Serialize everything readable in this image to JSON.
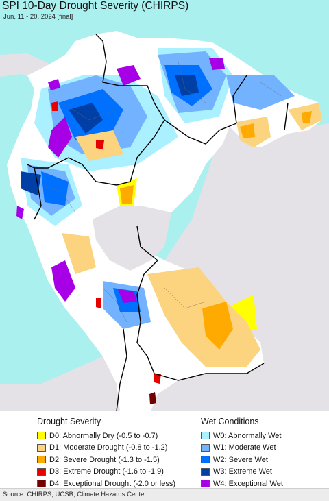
{
  "header": {
    "title": "SPI 10-Day Drought Severity (CHIRPS)",
    "subtitle": "Jun. 11 - 20, 2024 [final]"
  },
  "legend": {
    "drought": {
      "title": "Drought Severity",
      "items": [
        {
          "label": "D0: Abnormally Dry (-0.5 to -0.7)",
          "color": "#ffff00"
        },
        {
          "label": "D1: Moderate Drought (-0.8 to -1.2)",
          "color": "#fcd37f"
        },
        {
          "label": "D2: Severe Drought (-1.3 to -1.5)",
          "color": "#ffaa00"
        },
        {
          "label": "D3: Extreme Drought (-1.6 to -1.9)",
          "color": "#e60000"
        },
        {
          "label": "D4: Exceptional Drought (-2.0 or less)",
          "color": "#730000"
        }
      ]
    },
    "wet": {
      "title": "Wet Conditions",
      "items": [
        {
          "label": "W0: Abnormally Wet",
          "color": "#aaf0ff"
        },
        {
          "label": "W1: Moderate Wet",
          "color": "#73b2ff"
        },
        {
          "label": "W2: Severe Wet",
          "color": "#0070ff"
        },
        {
          "label": "W3: Extreme Wet",
          "color": "#0040a6"
        },
        {
          "label": "W4: Exceptional Wet",
          "color": "#a800e6"
        }
      ]
    }
  },
  "map": {
    "ocean_color": "#a9f0ee",
    "outside_land_color": "#e4e2e6",
    "neutral_land_color": "#ffffff"
  },
  "footer": {
    "source": "Source: CHIRPS, UCSB, Climate Hazards Center"
  }
}
